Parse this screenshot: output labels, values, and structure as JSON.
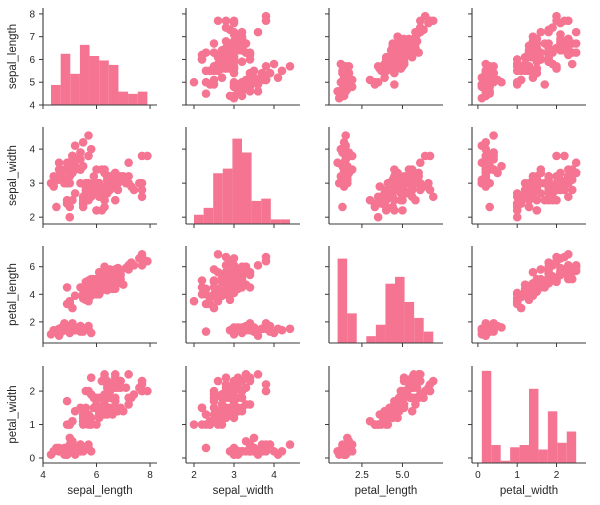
{
  "chart_data": {
    "type": "pairplot",
    "color": "#f47491",
    "variables": [
      "sepal_length",
      "sepal_width",
      "petal_length",
      "petal_width"
    ],
    "axes": {
      "sepal_length": {
        "range": [
          4.0,
          8.26
        ],
        "ticks": [
          4,
          5,
          6,
          7,
          8
        ],
        "tick_labels": [
          "4",
          "5",
          "6",
          "7",
          "8"
        ],
        "x_ticks": [
          4,
          6,
          8
        ],
        "x_tick_labels": [
          "4",
          "6",
          "8"
        ]
      },
      "sepal_width": {
        "range": [
          1.8,
          4.65
        ],
        "ticks": [
          2,
          3,
          4
        ],
        "tick_labels": [
          "2",
          "3",
          "4"
        ],
        "x_ticks": [
          2,
          3,
          4
        ],
        "x_tick_labels": [
          "2",
          "3",
          "4"
        ]
      },
      "petal_length": {
        "range": [
          0.47,
          7.5
        ],
        "ticks": [
          2,
          4,
          6
        ],
        "tick_labels": [
          "2",
          "4",
          "6"
        ],
        "x_ticks": [
          2.5,
          5.0
        ],
        "x_tick_labels": [
          "2.5",
          "5.0"
        ]
      },
      "petal_width": {
        "range": [
          -0.15,
          2.75
        ],
        "ticks": [
          0,
          1,
          2
        ],
        "tick_labels": [
          "0",
          "1",
          "2"
        ],
        "x_ticks": [
          0,
          1,
          2
        ],
        "x_tick_labels": [
          "0",
          "1",
          "2"
        ]
      }
    },
    "diagonal": "histogram",
    "off_diagonal": "scatter",
    "hist_bins": 10,
    "grid": false,
    "legend": "none",
    "rows": [
      [
        5.1,
        3.5,
        1.4,
        0.2
      ],
      [
        4.9,
        3.0,
        1.4,
        0.2
      ],
      [
        4.7,
        3.2,
        1.3,
        0.2
      ],
      [
        4.6,
        3.1,
        1.5,
        0.2
      ],
      [
        5.0,
        3.6,
        1.4,
        0.2
      ],
      [
        5.4,
        3.9,
        1.7,
        0.4
      ],
      [
        4.6,
        3.4,
        1.4,
        0.3
      ],
      [
        5.0,
        3.4,
        1.5,
        0.2
      ],
      [
        4.4,
        2.9,
        1.4,
        0.2
      ],
      [
        4.9,
        3.1,
        1.5,
        0.1
      ],
      [
        5.4,
        3.7,
        1.5,
        0.2
      ],
      [
        4.8,
        3.4,
        1.6,
        0.2
      ],
      [
        4.8,
        3.0,
        1.4,
        0.1
      ],
      [
        4.3,
        3.0,
        1.1,
        0.1
      ],
      [
        5.8,
        4.0,
        1.2,
        0.2
      ],
      [
        5.7,
        4.4,
        1.5,
        0.4
      ],
      [
        5.4,
        3.9,
        1.3,
        0.4
      ],
      [
        5.1,
        3.5,
        1.4,
        0.3
      ],
      [
        5.7,
        3.8,
        1.7,
        0.3
      ],
      [
        5.1,
        3.8,
        1.5,
        0.3
      ],
      [
        5.4,
        3.4,
        1.7,
        0.2
      ],
      [
        5.1,
        3.7,
        1.5,
        0.4
      ],
      [
        4.6,
        3.6,
        1.0,
        0.2
      ],
      [
        5.1,
        3.3,
        1.7,
        0.5
      ],
      [
        4.8,
        3.4,
        1.9,
        0.2
      ],
      [
        5.0,
        3.0,
        1.6,
        0.2
      ],
      [
        5.0,
        3.4,
        1.6,
        0.4
      ],
      [
        5.2,
        3.5,
        1.5,
        0.2
      ],
      [
        5.2,
        3.4,
        1.4,
        0.2
      ],
      [
        4.7,
        3.2,
        1.6,
        0.2
      ],
      [
        4.8,
        3.1,
        1.6,
        0.2
      ],
      [
        5.4,
        3.4,
        1.5,
        0.4
      ],
      [
        5.2,
        4.1,
        1.5,
        0.1
      ],
      [
        5.5,
        4.2,
        1.4,
        0.2
      ],
      [
        4.9,
        3.1,
        1.5,
        0.2
      ],
      [
        5.0,
        3.2,
        1.2,
        0.2
      ],
      [
        5.5,
        3.5,
        1.3,
        0.2
      ],
      [
        4.9,
        3.6,
        1.4,
        0.1
      ],
      [
        4.4,
        3.0,
        1.3,
        0.2
      ],
      [
        5.1,
        3.4,
        1.5,
        0.2
      ],
      [
        5.0,
        3.5,
        1.3,
        0.3
      ],
      [
        4.5,
        2.3,
        1.3,
        0.3
      ],
      [
        4.4,
        3.2,
        1.3,
        0.2
      ],
      [
        5.0,
        3.5,
        1.6,
        0.6
      ],
      [
        5.1,
        3.8,
        1.9,
        0.4
      ],
      [
        4.8,
        3.0,
        1.4,
        0.3
      ],
      [
        5.1,
        3.8,
        1.6,
        0.2
      ],
      [
        4.6,
        3.2,
        1.4,
        0.2
      ],
      [
        5.3,
        3.7,
        1.5,
        0.2
      ],
      [
        5.0,
        3.3,
        1.4,
        0.2
      ],
      [
        7.0,
        3.2,
        4.7,
        1.4
      ],
      [
        6.4,
        3.2,
        4.5,
        1.5
      ],
      [
        6.9,
        3.1,
        4.9,
        1.5
      ],
      [
        5.5,
        2.3,
        4.0,
        1.3
      ],
      [
        6.5,
        2.8,
        4.6,
        1.5
      ],
      [
        5.7,
        2.8,
        4.5,
        1.3
      ],
      [
        6.3,
        3.3,
        4.7,
        1.6
      ],
      [
        4.9,
        2.4,
        3.3,
        1.0
      ],
      [
        6.6,
        2.9,
        4.6,
        1.3
      ],
      [
        5.2,
        2.7,
        3.9,
        1.4
      ],
      [
        5.0,
        2.0,
        3.5,
        1.0
      ],
      [
        5.9,
        3.0,
        4.2,
        1.5
      ],
      [
        6.0,
        2.2,
        4.0,
        1.0
      ],
      [
        6.1,
        2.9,
        4.7,
        1.4
      ],
      [
        5.6,
        2.9,
        3.6,
        1.3
      ],
      [
        6.7,
        3.1,
        4.4,
        1.4
      ],
      [
        5.6,
        3.0,
        4.5,
        1.5
      ],
      [
        5.8,
        2.7,
        4.1,
        1.0
      ],
      [
        6.2,
        2.2,
        4.5,
        1.5
      ],
      [
        5.6,
        2.5,
        3.9,
        1.1
      ],
      [
        5.9,
        3.2,
        4.8,
        1.8
      ],
      [
        6.1,
        2.8,
        4.0,
        1.3
      ],
      [
        6.3,
        2.5,
        4.9,
        1.5
      ],
      [
        6.1,
        2.8,
        4.7,
        1.2
      ],
      [
        6.4,
        2.9,
        4.3,
        1.3
      ],
      [
        6.6,
        3.0,
        4.4,
        1.4
      ],
      [
        6.8,
        2.8,
        4.8,
        1.4
      ],
      [
        6.7,
        3.0,
        5.0,
        1.7
      ],
      [
        6.0,
        2.9,
        4.5,
        1.5
      ],
      [
        5.7,
        2.6,
        3.5,
        1.0
      ],
      [
        5.5,
        2.4,
        3.8,
        1.1
      ],
      [
        5.5,
        2.4,
        3.7,
        1.0
      ],
      [
        5.8,
        2.7,
        3.9,
        1.2
      ],
      [
        6.0,
        2.7,
        5.1,
        1.6
      ],
      [
        5.4,
        3.0,
        4.5,
        1.5
      ],
      [
        6.0,
        3.4,
        4.5,
        1.6
      ],
      [
        6.7,
        3.1,
        4.7,
        1.5
      ],
      [
        6.3,
        2.3,
        4.4,
        1.3
      ],
      [
        5.6,
        3.0,
        4.1,
        1.3
      ],
      [
        5.5,
        2.5,
        4.0,
        1.3
      ],
      [
        5.5,
        2.6,
        4.4,
        1.2
      ],
      [
        6.1,
        3.0,
        4.6,
        1.4
      ],
      [
        5.8,
        2.6,
        4.0,
        1.2
      ],
      [
        5.0,
        2.3,
        3.3,
        1.0
      ],
      [
        5.6,
        2.7,
        4.2,
        1.3
      ],
      [
        5.7,
        3.0,
        4.2,
        1.2
      ],
      [
        5.7,
        2.9,
        4.2,
        1.3
      ],
      [
        6.2,
        2.9,
        4.3,
        1.3
      ],
      [
        5.1,
        2.5,
        3.0,
        1.1
      ],
      [
        5.7,
        2.8,
        4.1,
        1.3
      ],
      [
        6.3,
        3.3,
        6.0,
        2.5
      ],
      [
        5.8,
        2.7,
        5.1,
        1.9
      ],
      [
        7.1,
        3.0,
        5.9,
        2.1
      ],
      [
        6.3,
        2.9,
        5.6,
        1.8
      ],
      [
        6.5,
        3.0,
        5.8,
        2.2
      ],
      [
        7.6,
        3.0,
        6.6,
        2.1
      ],
      [
        4.9,
        2.5,
        4.5,
        1.7
      ],
      [
        7.3,
        2.9,
        6.3,
        1.8
      ],
      [
        6.7,
        2.5,
        5.8,
        1.8
      ],
      [
        7.2,
        3.6,
        6.1,
        2.5
      ],
      [
        6.5,
        3.2,
        5.1,
        2.0
      ],
      [
        6.4,
        2.7,
        5.3,
        1.9
      ],
      [
        6.8,
        3.0,
        5.5,
        2.1
      ],
      [
        5.7,
        2.5,
        5.0,
        2.0
      ],
      [
        5.8,
        2.8,
        5.1,
        2.4
      ],
      [
        6.4,
        3.2,
        5.3,
        2.3
      ],
      [
        6.5,
        3.0,
        5.5,
        1.8
      ],
      [
        7.7,
        3.8,
        6.7,
        2.2
      ],
      [
        7.7,
        2.6,
        6.9,
        2.3
      ],
      [
        6.0,
        2.2,
        5.0,
        1.5
      ],
      [
        6.9,
        3.2,
        5.7,
        2.3
      ],
      [
        5.6,
        2.8,
        4.9,
        2.0
      ],
      [
        7.7,
        2.8,
        6.7,
        2.0
      ],
      [
        6.3,
        2.7,
        4.9,
        1.8
      ],
      [
        6.7,
        3.3,
        5.7,
        2.1
      ],
      [
        7.2,
        3.2,
        6.0,
        1.8
      ],
      [
        6.2,
        2.8,
        4.8,
        1.8
      ],
      [
        6.1,
        3.0,
        4.9,
        1.8
      ],
      [
        6.4,
        2.8,
        5.6,
        2.1
      ],
      [
        7.2,
        3.0,
        5.8,
        1.6
      ],
      [
        7.4,
        2.8,
        6.1,
        1.9
      ],
      [
        7.9,
        3.8,
        6.4,
        2.0
      ],
      [
        6.4,
        2.8,
        5.6,
        2.2
      ],
      [
        6.3,
        2.8,
        5.1,
        1.5
      ],
      [
        6.1,
        2.6,
        5.6,
        1.4
      ],
      [
        7.7,
        3.0,
        6.1,
        2.3
      ],
      [
        6.3,
        3.4,
        5.6,
        2.4
      ],
      [
        6.4,
        3.1,
        5.5,
        1.8
      ],
      [
        6.0,
        3.0,
        4.8,
        1.8
      ],
      [
        6.9,
        3.1,
        5.4,
        2.1
      ],
      [
        6.7,
        3.1,
        5.6,
        2.4
      ],
      [
        6.9,
        3.1,
        5.1,
        2.3
      ],
      [
        5.8,
        2.7,
        5.1,
        1.9
      ],
      [
        6.8,
        3.2,
        5.9,
        2.3
      ],
      [
        6.7,
        3.3,
        5.7,
        2.5
      ],
      [
        6.7,
        3.0,
        5.2,
        2.3
      ],
      [
        6.3,
        2.5,
        5.0,
        1.9
      ],
      [
        6.5,
        3.0,
        5.2,
        2.0
      ],
      [
        6.2,
        3.4,
        5.4,
        2.3
      ],
      [
        5.9,
        3.0,
        5.1,
        1.8
      ]
    ]
  }
}
